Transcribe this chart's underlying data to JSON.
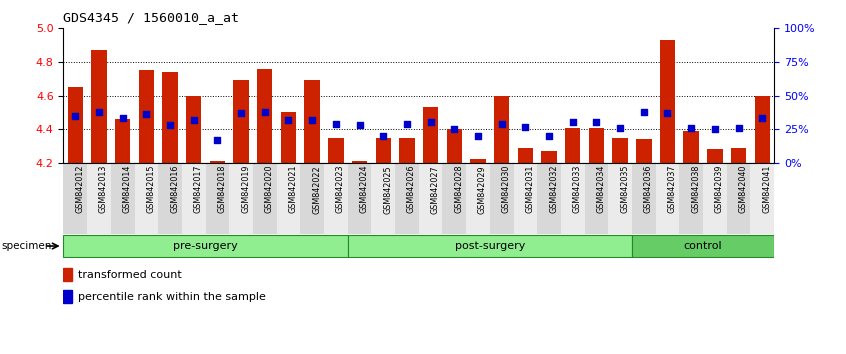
{
  "title": "GDS4345 / 1560010_a_at",
  "samples": [
    "GSM842012",
    "GSM842013",
    "GSM842014",
    "GSM842015",
    "GSM842016",
    "GSM842017",
    "GSM842018",
    "GSM842019",
    "GSM842020",
    "GSM842021",
    "GSM842022",
    "GSM842023",
    "GSM842024",
    "GSM842025",
    "GSM842026",
    "GSM842027",
    "GSM842028",
    "GSM842029",
    "GSM842030",
    "GSM842031",
    "GSM842032",
    "GSM842033",
    "GSM842034",
    "GSM842035",
    "GSM842036",
    "GSM842037",
    "GSM842038",
    "GSM842039",
    "GSM842040",
    "GSM842041"
  ],
  "red_values": [
    4.65,
    4.87,
    4.46,
    4.75,
    4.74,
    4.6,
    4.21,
    4.69,
    4.76,
    4.5,
    4.69,
    4.35,
    4.21,
    4.35,
    4.35,
    4.53,
    4.4,
    4.22,
    4.6,
    4.29,
    4.27,
    4.41,
    4.41,
    4.35,
    4.34,
    4.93,
    4.39,
    4.28,
    4.29,
    4.6
  ],
  "blue_percentiles": [
    35,
    38,
    33,
    36,
    28,
    32,
    17,
    37,
    38,
    32,
    32,
    29,
    28,
    20,
    29,
    30,
    25,
    20,
    29,
    27,
    20,
    30,
    30,
    26,
    38,
    37,
    26,
    25,
    26,
    33
  ],
  "groups": [
    {
      "label": "pre-surgery",
      "start": 0,
      "end": 12,
      "color": "#90EE90"
    },
    {
      "label": "post-surgery",
      "start": 12,
      "end": 24,
      "color": "#90EE90"
    },
    {
      "label": "control",
      "start": 24,
      "end": 30,
      "color": "#66CC66"
    }
  ],
  "ylim": [
    4.2,
    5.0
  ],
  "yticks_left": [
    4.2,
    4.4,
    4.6,
    4.8,
    5.0
  ],
  "yticks_right": [
    0,
    25,
    50,
    75,
    100
  ],
  "right_ylabels": [
    "0%",
    "25%",
    "50%",
    "75%",
    "100%"
  ],
  "bar_color": "#CC2200",
  "dot_color": "#0000CC",
  "bar_bottom": 4.2
}
